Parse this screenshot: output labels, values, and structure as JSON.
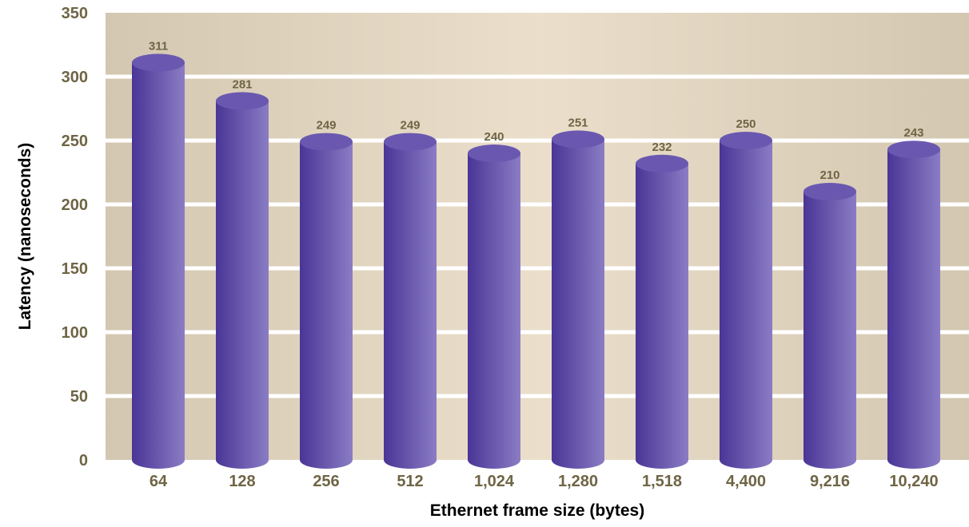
{
  "chart_data": {
    "type": "bar",
    "title": "",
    "xlabel": "Ethernet frame size (bytes)",
    "ylabel": "Latency (nanoseconds)",
    "categories": [
      "64",
      "128",
      "256",
      "512",
      "1,024",
      "1,280",
      "1,518",
      "4,400",
      "9,216",
      "10,240"
    ],
    "values": [
      311,
      281,
      249,
      249,
      240,
      251,
      232,
      250,
      210,
      243
    ],
    "value_labels": [
      "311",
      "281",
      "249",
      "249",
      "240",
      "251",
      "232",
      "250",
      "210",
      "243"
    ],
    "yticks": [
      0,
      50,
      100,
      150,
      200,
      250,
      300,
      350
    ],
    "ylim": [
      0,
      350
    ],
    "grid": true,
    "legend": "none",
    "colors": {
      "bar_dark": "#4a3596",
      "bar_light": "#8a7cc4",
      "bar_top": "#6a58b0",
      "background_edge": "#d3c7b1",
      "background_center": "#ebdfcb",
      "gridline": "#ffffff",
      "tick_label": "#6f6545"
    }
  }
}
